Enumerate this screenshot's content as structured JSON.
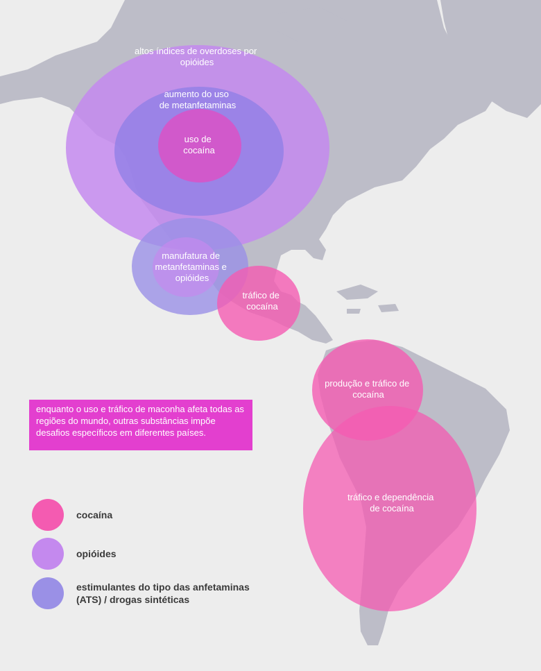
{
  "regions": [
    {
      "id": "opioid-overdoses",
      "text": "altos índices de overdoses por opióides",
      "category": "opioids"
    },
    {
      "id": "meth-use",
      "text": "aumento do uso de metanfetaminas",
      "category": "ats"
    },
    {
      "id": "cocaine-use",
      "text": "uso de cocaína",
      "category": "cocaine"
    },
    {
      "id": "meth-opioid-manufacture",
      "text": "manufatura de metanfetaminas e opióides",
      "category": "ats"
    },
    {
      "id": "cocaine-trafficking-central",
      "text": "tráfico de cocaína",
      "category": "cocaine"
    },
    {
      "id": "cocaine-production",
      "text": "produção e tráfico de cocaína",
      "category": "cocaine"
    },
    {
      "id": "cocaine-dependence",
      "text": "tráfico e dependência de cocaína",
      "category": "cocaine"
    }
  ],
  "note": "enquanto o uso e tráfico de maconha afeta todas as regiões do mundo, outras substâncias impõe desafios específicos em diferentes países.",
  "legend": [
    {
      "label": "cocaína",
      "color": "#f45bb1"
    },
    {
      "label": "opióides",
      "color": "#c489ee"
    },
    {
      "label": "estimulantes do tipo das anfetaminas (ATS) / drogas sintéticas",
      "color": "#9a90e6"
    }
  ],
  "colors": {
    "background": "#ededed",
    "land": "#bdbdc8",
    "cocaine": "#f45bb1",
    "opioids": "#c489ee",
    "ats": "#9a90e6",
    "note_background": "#e33fcf"
  }
}
